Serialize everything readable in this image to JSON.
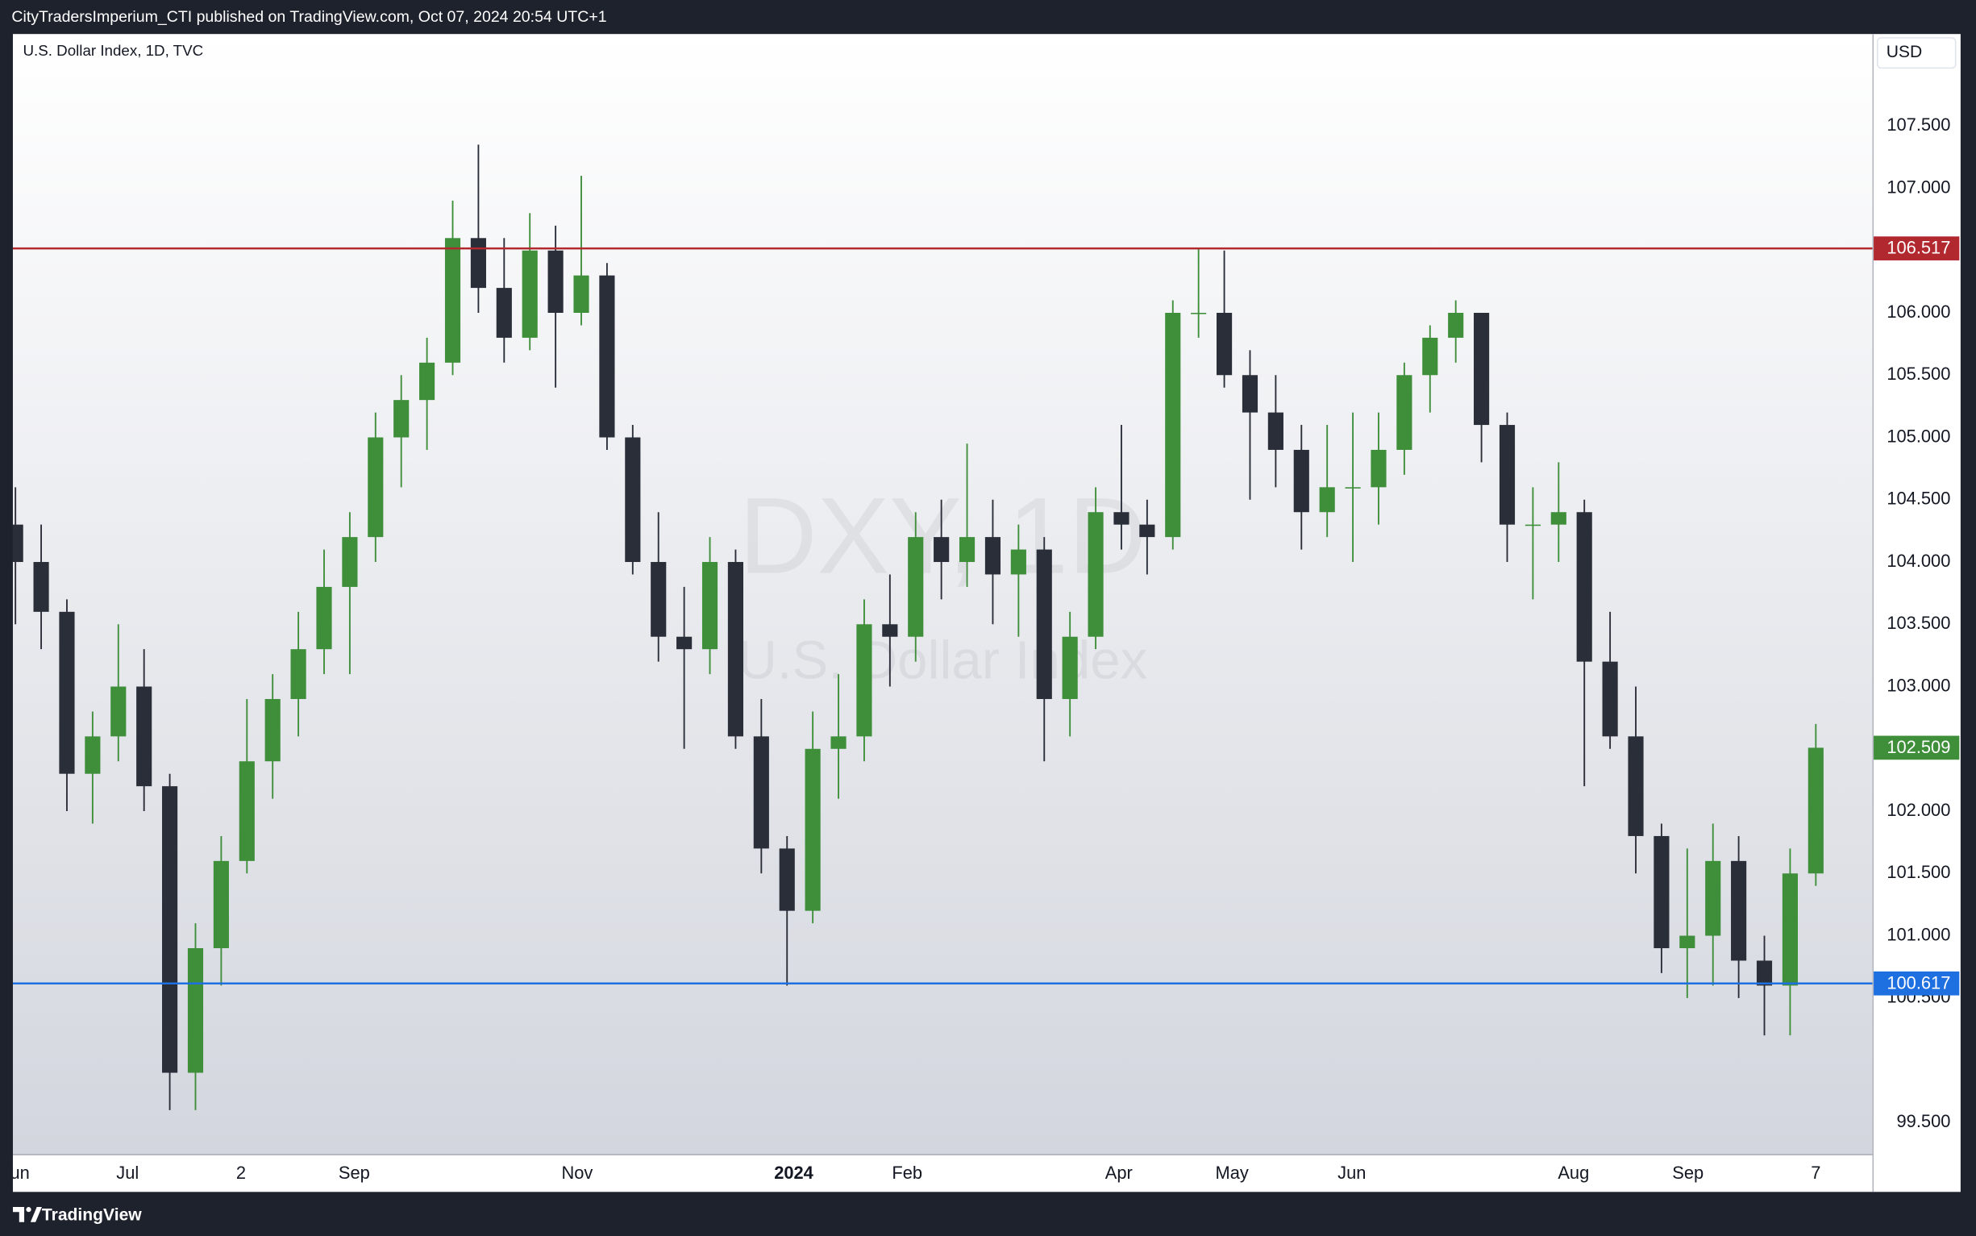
{
  "header": "CityTradersImperium_CTI published on TradingView.com, Oct 07, 2024 20:54 UTC+1",
  "footer": "TradingView",
  "chart_data": {
    "type": "candlestick",
    "title": "U.S. Dollar Index, 1D, TVC",
    "watermark": [
      "DXY, 1D",
      "U.S. Dollar Index"
    ],
    "currency": "USD",
    "up_color": "#3e8e3a",
    "down_color": "#2a2e39",
    "grid": false,
    "xlim": [
      -0.1,
      72.2
    ],
    "ylim": [
      99.247,
      108.238
    ],
    "xticks": [
      {
        "value": 0,
        "label": "Jun"
      },
      {
        "value": 4.36,
        "label": "Jul"
      },
      {
        "value": 8.77,
        "label": "2"
      },
      {
        "value": 13.17,
        "label": "Sep"
      },
      {
        "value": 21.84,
        "label": "Nov"
      },
      {
        "value": 30.26,
        "label": "2024"
      },
      {
        "value": 34.67,
        "label": "Feb"
      },
      {
        "value": 42.9,
        "label": "Apr"
      },
      {
        "value": 47.3,
        "label": "May"
      },
      {
        "value": 51.96,
        "label": "Jun"
      },
      {
        "value": 60.58,
        "label": "Aug"
      },
      {
        "value": 65.03,
        "label": "Sep"
      },
      {
        "value": 70.0,
        "label": "7"
      }
    ],
    "yticks": [
      {
        "value": 99.5,
        "label": "99.500"
      },
      {
        "value": 100.5,
        "label": "100.500"
      },
      {
        "value": 101,
        "label": "101.000"
      },
      {
        "value": 101.5,
        "label": "101.500"
      },
      {
        "value": 102,
        "label": "102.000"
      },
      {
        "value": 103,
        "label": "103.000"
      },
      {
        "value": 103.5,
        "label": "103.500"
      },
      {
        "value": 104,
        "label": "104.000"
      },
      {
        "value": 104.5,
        "label": "104.500"
      },
      {
        "value": 105,
        "label": "105.000"
      },
      {
        "value": 105.5,
        "label": "105.500"
      },
      {
        "value": 106,
        "label": "106.000"
      },
      {
        "value": 107,
        "label": "107.000"
      },
      {
        "value": 107.5,
        "label": "107.500"
      }
    ],
    "hlines": [
      {
        "value": 106.517,
        "color": "#b2282f"
      },
      {
        "value": 100.617,
        "color": "#1e6fe0"
      }
    ],
    "last_color": "#3e8e3a",
    "candles": [
      [
        104.3,
        104.6,
        103.5,
        104.0
      ],
      [
        104.0,
        104.3,
        103.3,
        103.6
      ],
      [
        103.6,
        103.7,
        102.0,
        102.3
      ],
      [
        102.3,
        102.8,
        101.9,
        102.6
      ],
      [
        102.6,
        103.5,
        102.4,
        103.0
      ],
      [
        103.0,
        103.3,
        102.0,
        102.2
      ],
      [
        102.2,
        102.3,
        99.6,
        99.9
      ],
      [
        99.9,
        101.1,
        99.6,
        100.9
      ],
      [
        100.9,
        101.8,
        100.6,
        101.6
      ],
      [
        101.6,
        102.9,
        101.5,
        102.4
      ],
      [
        102.4,
        103.1,
        102.1,
        102.9
      ],
      [
        102.9,
        103.6,
        102.6,
        103.3
      ],
      [
        103.3,
        104.1,
        103.1,
        103.8
      ],
      [
        103.8,
        104.4,
        103.1,
        104.2
      ],
      [
        104.2,
        105.2,
        104.0,
        105.0
      ],
      [
        105.0,
        105.5,
        104.6,
        105.3
      ],
      [
        105.3,
        105.8,
        104.9,
        105.6
      ],
      [
        105.6,
        106.9,
        105.5,
        106.6
      ],
      [
        106.6,
        107.35,
        106.0,
        106.2
      ],
      [
        106.2,
        106.6,
        105.6,
        105.8
      ],
      [
        105.8,
        106.8,
        105.7,
        106.5
      ],
      [
        106.5,
        106.7,
        105.4,
        106.0
      ],
      [
        106.0,
        107.1,
        105.9,
        106.3
      ],
      [
        106.3,
        106.4,
        104.9,
        105.0
      ],
      [
        105.0,
        105.1,
        103.9,
        104.0
      ],
      [
        104.0,
        104.4,
        103.2,
        103.4
      ],
      [
        103.4,
        103.8,
        102.5,
        103.3
      ],
      [
        103.3,
        104.2,
        103.1,
        104.0
      ],
      [
        104.0,
        104.1,
        102.5,
        102.6
      ],
      [
        102.6,
        102.9,
        101.5,
        101.7
      ],
      [
        101.7,
        101.8,
        100.6,
        101.2
      ],
      [
        101.2,
        102.8,
        101.1,
        102.5
      ],
      [
        102.5,
        103.1,
        102.1,
        102.6
      ],
      [
        102.6,
        103.7,
        102.4,
        103.5
      ],
      [
        103.5,
        103.9,
        103.0,
        103.4
      ],
      [
        103.4,
        104.4,
        103.2,
        104.2
      ],
      [
        104.2,
        104.5,
        103.7,
        104.0
      ],
      [
        104.0,
        104.95,
        103.8,
        104.2
      ],
      [
        104.2,
        104.5,
        103.5,
        103.9
      ],
      [
        103.9,
        104.3,
        103.4,
        104.1
      ],
      [
        104.1,
        104.2,
        102.4,
        102.9
      ],
      [
        102.9,
        103.6,
        102.6,
        103.4
      ],
      [
        103.4,
        104.6,
        103.3,
        104.4
      ],
      [
        104.4,
        105.1,
        104.1,
        104.3
      ],
      [
        104.3,
        104.5,
        103.9,
        104.2
      ],
      [
        104.2,
        106.1,
        104.1,
        106.0
      ],
      [
        106.0,
        106.52,
        105.8,
        106.0
      ],
      [
        106.0,
        106.5,
        105.4,
        105.5
      ],
      [
        105.5,
        105.7,
        104.5,
        105.2
      ],
      [
        105.2,
        105.5,
        104.6,
        104.9
      ],
      [
        104.9,
        105.1,
        104.1,
        104.4
      ],
      [
        104.4,
        105.1,
        104.2,
        104.6
      ],
      [
        104.6,
        105.2,
        104.0,
        104.6
      ],
      [
        104.6,
        105.2,
        104.3,
        104.9
      ],
      [
        104.9,
        105.6,
        104.7,
        105.5
      ],
      [
        105.5,
        105.9,
        105.2,
        105.8
      ],
      [
        105.8,
        106.1,
        105.6,
        106.0
      ],
      [
        106.0,
        106.0,
        104.8,
        105.1
      ],
      [
        105.1,
        105.2,
        104.0,
        104.3
      ],
      [
        104.3,
        104.6,
        103.7,
        104.3
      ],
      [
        104.3,
        104.8,
        104.0,
        104.4
      ],
      [
        104.4,
        104.5,
        102.2,
        103.2
      ],
      [
        103.2,
        103.6,
        102.5,
        102.6
      ],
      [
        102.6,
        103.0,
        101.5,
        101.8
      ],
      [
        101.8,
        101.9,
        100.7,
        100.9
      ],
      [
        100.9,
        101.7,
        100.5,
        101.0
      ],
      [
        101.0,
        101.9,
        100.6,
        101.6
      ],
      [
        101.6,
        101.8,
        100.5,
        100.8
      ],
      [
        100.8,
        101.0,
        100.2,
        100.6
      ],
      [
        100.6,
        101.7,
        100.2,
        101.5
      ],
      [
        101.5,
        102.7,
        101.4,
        102.509
      ]
    ]
  }
}
